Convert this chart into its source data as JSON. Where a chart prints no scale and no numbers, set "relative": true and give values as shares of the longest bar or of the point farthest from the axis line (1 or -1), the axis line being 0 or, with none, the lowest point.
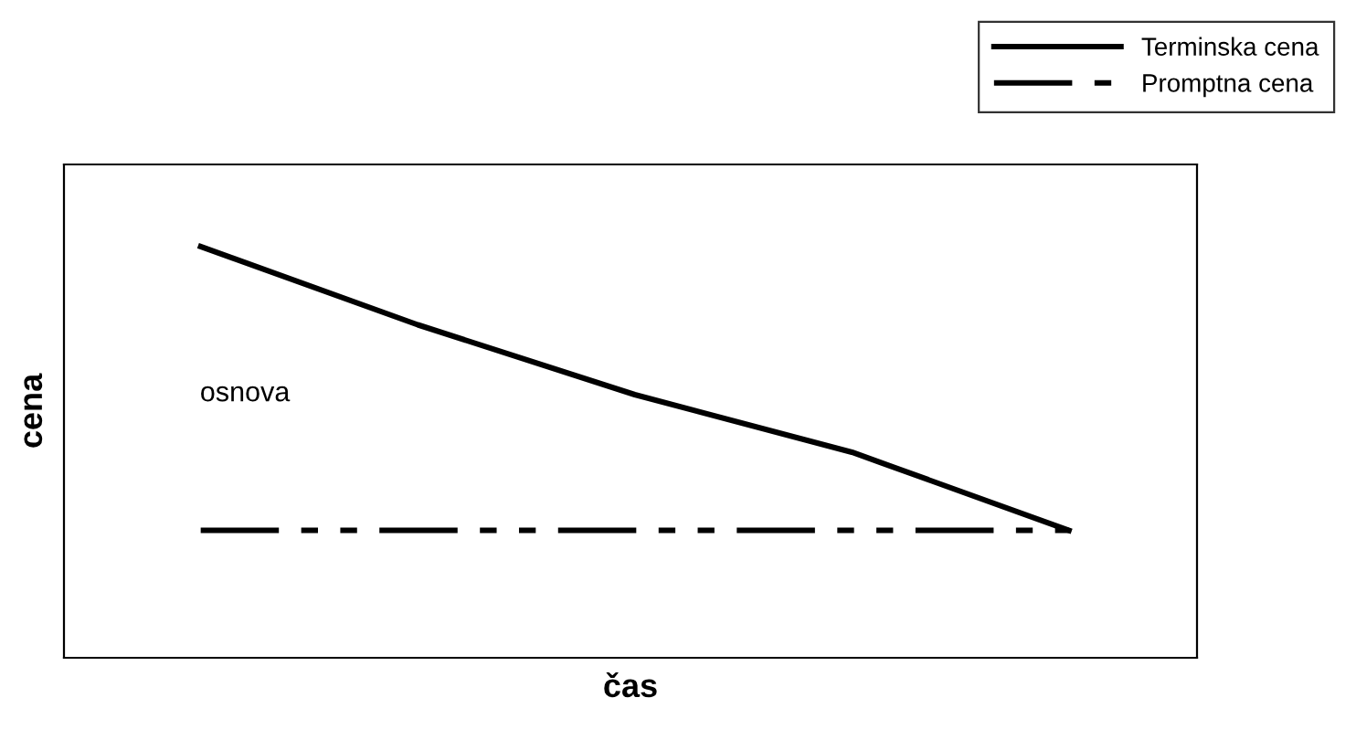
{
  "chart_data": {
    "type": "line",
    "relative": true,
    "xlabel": "čas",
    "ylabel": "cena",
    "categories": [
      null,
      null,
      null,
      null,
      null
    ],
    "series": [
      {
        "name": "Terminska cena",
        "color": "#000000",
        "line_style": "solid",
        "values": [
          1.0,
          0.81,
          0.64,
          0.5,
          0.31
        ]
      },
      {
        "name": "Promptna cena",
        "color": "#000000",
        "line_style": "dashed",
        "values": [
          0.31,
          0.31,
          0.31,
          0.31,
          0.31
        ]
      }
    ],
    "annotations": [
      {
        "text": "osnova"
      }
    ],
    "legend": "top right",
    "grid": false,
    "marker": "none",
    "tick_labels": false
  }
}
